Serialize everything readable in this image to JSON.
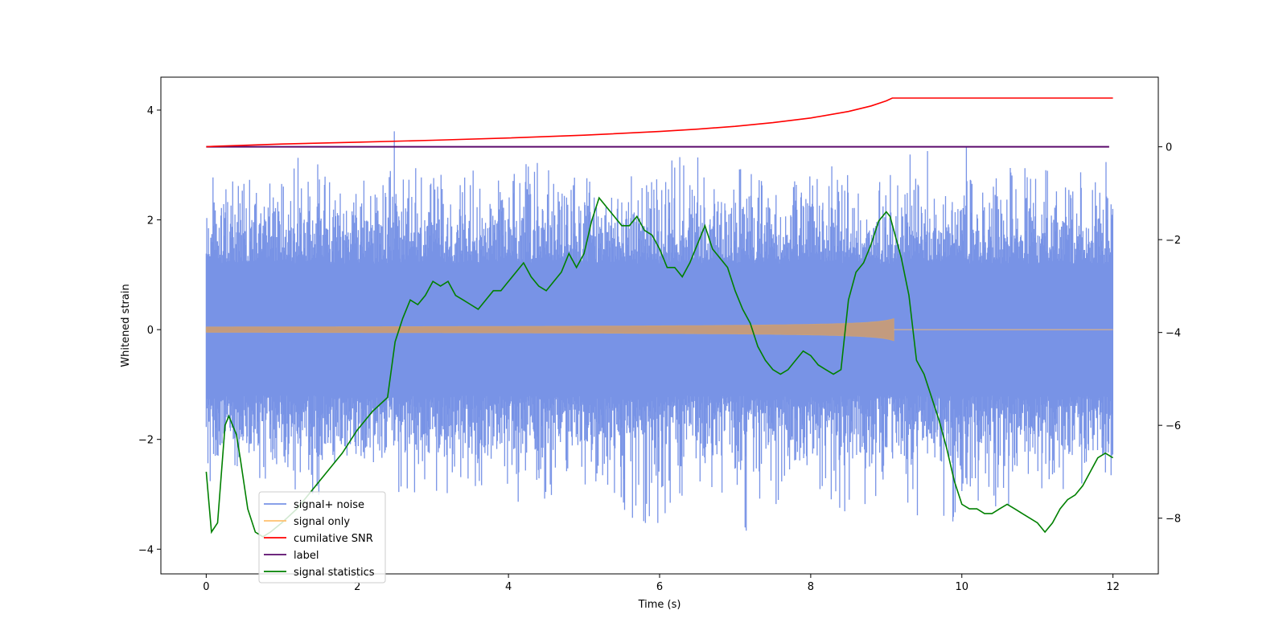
{
  "chart_data": {
    "type": "line",
    "title": "",
    "xlabel": "Time (s)",
    "ylabel_left": "Whitened strain",
    "ylabel_right": "",
    "xlim": [
      -0.6,
      12.6
    ],
    "ylim_left": [
      -4.45,
      4.6
    ],
    "ylim_right": [
      -9.2,
      1.5
    ],
    "x_ticks": [
      0,
      2,
      4,
      6,
      8,
      10,
      12
    ],
    "x_tick_labels": [
      "0",
      "2",
      "4",
      "6",
      "8",
      "10",
      "12"
    ],
    "y_left_ticks": [
      4,
      2,
      0,
      -2,
      -4
    ],
    "y_left_tick_labels": [
      "4",
      "2",
      "0",
      "−2",
      "−4"
    ],
    "y_right_ticks": [
      0,
      -2,
      -4,
      -6,
      -8
    ],
    "y_right_tick_labels": [
      "0",
      "−2",
      "−4",
      "−6",
      "−8"
    ],
    "legend_position": "lower-left",
    "series": [
      {
        "name": "signal+ noise",
        "axis": "left",
        "color": "#7893e6",
        "style": "dense noise, approx. ±1.5 band with spikes",
        "envelope_upper": [
          2.1,
          2.6,
          2.5,
          3.4,
          2.4,
          2.9,
          3.1,
          2.6,
          2.8,
          3.3,
          2.7,
          3.0,
          2.8,
          3.5,
          3.2,
          2.9,
          3.0,
          3.1,
          3.2,
          3.0,
          3.5,
          2.8,
          3.2,
          3.0,
          2.9,
          2.6
        ],
        "envelope_lower": [
          -3.3,
          -2.6,
          -2.9,
          -3.1,
          -2.8,
          -3.0,
          -3.0,
          -3.1,
          -2.9,
          -3.3,
          -2.8,
          -2.9,
          -3.9,
          -3.1,
          -3.0,
          -3.8,
          -3.1,
          -3.0,
          -3.6,
          -2.8,
          -4.0,
          -3.1,
          -3.4,
          -2.9,
          -3.0,
          -2.8
        ],
        "envelope_x": [
          0,
          0.48,
          0.96,
          1.44,
          1.92,
          2.4,
          2.88,
          3.36,
          3.84,
          4.32,
          4.8,
          5.28,
          5.76,
          6.24,
          6.72,
          7.2,
          7.68,
          8.16,
          8.64,
          9.12,
          9.6,
          10.08,
          10.56,
          11.04,
          11.52,
          12
        ]
      },
      {
        "name": "signal only",
        "axis": "left",
        "color": "#ffc06e",
        "chirp_end_time": 9.1,
        "chirp_peak_amplitude": 0.2
      },
      {
        "name": "cumilative SNR",
        "axis": "right",
        "color": "#ff0000",
        "x": [
          0,
          0.1,
          1,
          2,
          3,
          4,
          5,
          6,
          6.5,
          7,
          7.5,
          8,
          8.5,
          8.8,
          9,
          9.08,
          9.1,
          12
        ],
        "y": [
          0,
          0.01,
          0.06,
          0.1,
          0.14,
          0.19,
          0.25,
          0.33,
          0.38,
          0.44,
          0.52,
          0.62,
          0.76,
          0.88,
          0.99,
          1.05,
          1.05,
          1.05
        ]
      },
      {
        "name": "label",
        "axis": "right",
        "color": "#5a0a6b",
        "x": [
          0,
          11.95
        ],
        "y": [
          0,
          0
        ]
      },
      {
        "name": "signal statistics",
        "axis": "right",
        "color": "#008000",
        "x": [
          0,
          0.07,
          0.15,
          0.25,
          0.3,
          0.4,
          0.45,
          0.55,
          0.65,
          0.75,
          0.85,
          1.0,
          1.2,
          1.4,
          1.6,
          1.8,
          2.0,
          2.2,
          2.4,
          2.5,
          2.6,
          2.7,
          2.8,
          2.9,
          3.0,
          3.1,
          3.2,
          3.3,
          3.4,
          3.5,
          3.6,
          3.7,
          3.8,
          3.9,
          4.0,
          4.1,
          4.2,
          4.3,
          4.4,
          4.5,
          4.6,
          4.7,
          4.8,
          4.9,
          5.0,
          5.1,
          5.2,
          5.3,
          5.35,
          5.4,
          5.5,
          5.6,
          5.7,
          5.8,
          5.9,
          6.0,
          6.1,
          6.2,
          6.3,
          6.4,
          6.5,
          6.6,
          6.7,
          6.8,
          6.9,
          7.0,
          7.1,
          7.2,
          7.3,
          7.4,
          7.5,
          7.6,
          7.7,
          7.8,
          7.9,
          8.0,
          8.1,
          8.2,
          8.3,
          8.4,
          8.5,
          8.6,
          8.7,
          8.8,
          8.9,
          9.0,
          9.05,
          9.1,
          9.2,
          9.3,
          9.4,
          9.5,
          9.6,
          9.7,
          9.8,
          9.9,
          10.0,
          10.1,
          10.2,
          10.3,
          10.4,
          10.5,
          10.6,
          10.7,
          10.8,
          10.9,
          11.0,
          11.1,
          11.2,
          11.3,
          11.4,
          11.5,
          11.6,
          11.7,
          11.8,
          11.9,
          12.0
        ],
        "y": [
          -7.0,
          -8.3,
          -8.1,
          -6.0,
          -5.8,
          -6.2,
          -6.7,
          -7.8,
          -8.3,
          -8.4,
          -8.3,
          -8.1,
          -7.8,
          -7.4,
          -7.0,
          -6.6,
          -6.1,
          -5.7,
          -5.4,
          -4.2,
          -3.7,
          -3.3,
          -3.4,
          -3.2,
          -2.9,
          -3.0,
          -2.9,
          -3.2,
          -3.3,
          -3.4,
          -3.5,
          -3.3,
          -3.1,
          -3.1,
          -2.9,
          -2.7,
          -2.5,
          -2.8,
          -3.0,
          -3.1,
          -2.9,
          -2.7,
          -2.3,
          -2.6,
          -2.3,
          -1.6,
          -1.1,
          -1.3,
          -1.4,
          -1.5,
          -1.7,
          -1.7,
          -1.5,
          -1.8,
          -1.9,
          -2.2,
          -2.6,
          -2.6,
          -2.8,
          -2.5,
          -2.1,
          -1.7,
          -2.2,
          -2.4,
          -2.6,
          -3.1,
          -3.5,
          -3.8,
          -4.3,
          -4.6,
          -4.8,
          -4.9,
          -4.8,
          -4.6,
          -4.4,
          -4.5,
          -4.7,
          -4.8,
          -4.9,
          -4.8,
          -3.3,
          -2.7,
          -2.5,
          -2.1,
          -1.6,
          -1.4,
          -1.5,
          -1.8,
          -2.4,
          -3.2,
          -4.6,
          -4.9,
          -5.4,
          -5.9,
          -6.5,
          -7.2,
          -7.7,
          -7.8,
          -7.8,
          -7.9,
          -7.9,
          -7.8,
          -7.7,
          -7.8,
          -7.9,
          -8.0,
          -8.1,
          -8.3,
          -8.1,
          -7.8,
          -7.6,
          -7.5,
          -7.3,
          -7.0,
          -6.7,
          -6.6,
          -6.7
        ]
      }
    ]
  }
}
